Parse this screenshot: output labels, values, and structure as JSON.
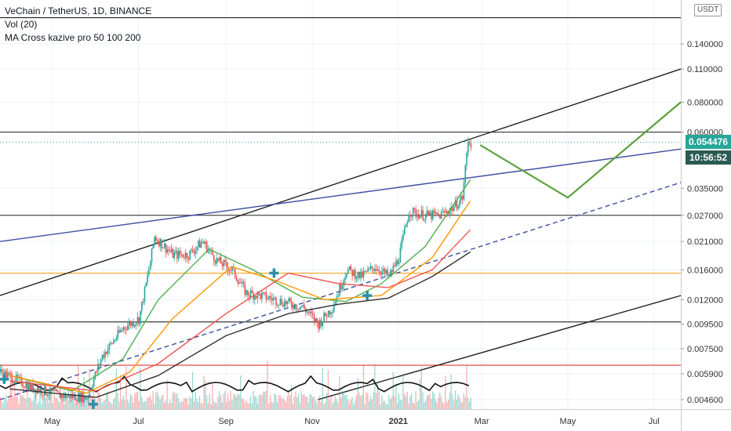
{
  "legend": {
    "title": "VeChain / TetherUS, 1D, BINANCE",
    "vol": "Vol (20)",
    "ma": "MA Cross kazive pro 50 100 200"
  },
  "axis": {
    "currency": "USDT"
  },
  "price_label": "0.054476",
  "countdown_label": "10:56:52",
  "colors": {
    "up": "#26a69a",
    "down": "#ef5350",
    "ma_fast": "#4caf50",
    "ma_mid": "#ff9800",
    "ma_slow": "#ef5350",
    "ma_200": "#333333",
    "trend_blue": "#3f4fa0",
    "projection": "#5ba03d",
    "support_orange": "#f5a623",
    "support_red": "#e53935"
  },
  "chart_data": {
    "type": "candlestick",
    "symbol": "VeChain / TetherUS",
    "interval": "1D",
    "exchange": "BINANCE",
    "price_scale": "log",
    "y_ticks": [
      0.0046,
      0.0059,
      0.0075,
      0.0095,
      0.012,
      0.016,
      0.021,
      0.027,
      0.035,
      0.06,
      0.08,
      0.11,
      0.14
    ],
    "x_ticks": [
      "May",
      "Jul",
      "Sep",
      "Nov",
      "2021",
      "Mar",
      "May",
      "Jul"
    ],
    "horizontal_levels": [
      {
        "price": 0.18,
        "color": "#222222"
      },
      {
        "price": 0.06,
        "color": "#222222"
      },
      {
        "price": 0.027,
        "color": "#222222"
      },
      {
        "price": 0.0155,
        "color": "#f5a623"
      },
      {
        "price": 0.0097,
        "color": "#222222"
      },
      {
        "price": 0.0064,
        "color": "#e53935"
      }
    ],
    "last_price": 0.054476,
    "countdown": "10:56:52",
    "price_path": [
      [
        "2020-03-25",
        0.006
      ],
      [
        "2020-04-15",
        0.0052
      ],
      [
        "2020-05-05",
        0.0048
      ],
      [
        "2020-05-25",
        0.0047
      ],
      [
        "2020-06-05",
        0.007
      ],
      [
        "2020-06-20",
        0.0092
      ],
      [
        "2020-07-01",
        0.01
      ],
      [
        "2020-07-08",
        0.016
      ],
      [
        "2020-07-12",
        0.022
      ],
      [
        "2020-07-25",
        0.0185
      ],
      [
        "2020-08-05",
        0.0185
      ],
      [
        "2020-08-15",
        0.021
      ],
      [
        "2020-08-25",
        0.0175
      ],
      [
        "2020-09-05",
        0.016
      ],
      [
        "2020-09-15",
        0.0128
      ],
      [
        "2020-09-25",
        0.0125
      ],
      [
        "2020-10-10",
        0.0118
      ],
      [
        "2020-10-25",
        0.0112
      ],
      [
        "2020-11-05",
        0.0095
      ],
      [
        "2020-11-15",
        0.0112
      ],
      [
        "2020-11-25",
        0.016
      ],
      [
        "2020-12-05",
        0.015
      ],
      [
        "2020-12-15",
        0.0165
      ],
      [
        "2020-12-25",
        0.015
      ],
      [
        "2021-01-01",
        0.018
      ],
      [
        "2021-01-08",
        0.028
      ],
      [
        "2021-01-20",
        0.027
      ],
      [
        "2021-01-30",
        0.027
      ],
      [
        "2021-02-08",
        0.029
      ],
      [
        "2021-02-15",
        0.032
      ],
      [
        "2021-02-19",
        0.056
      ],
      [
        "2021-02-21",
        0.054
      ]
    ],
    "moving_averages": [
      {
        "name": "MA 50",
        "color": "#4caf50",
        "points": [
          [
            "2020-04-01",
            0.0058
          ],
          [
            "2020-05-15",
            0.005
          ],
          [
            "2020-06-20",
            0.0068
          ],
          [
            "2020-07-15",
            0.012
          ],
          [
            "2020-08-20",
            0.0195
          ],
          [
            "2020-09-20",
            0.016
          ],
          [
            "2020-10-25",
            0.0123
          ],
          [
            "2020-11-25",
            0.0118
          ],
          [
            "2020-12-20",
            0.014
          ],
          [
            "2021-01-20",
            0.02
          ],
          [
            "2021-02-21",
            0.038
          ]
        ]
      },
      {
        "name": "MA 100",
        "color": "#ff9800",
        "points": [
          [
            "2020-04-01",
            0.0058
          ],
          [
            "2020-05-25",
            0.0049
          ],
          [
            "2020-06-25",
            0.006
          ],
          [
            "2020-07-25",
            0.01
          ],
          [
            "2020-09-05",
            0.0165
          ],
          [
            "2020-10-05",
            0.0145
          ],
          [
            "2020-11-10",
            0.012
          ],
          [
            "2020-12-20",
            0.0125
          ],
          [
            "2021-01-25",
            0.018
          ],
          [
            "2021-02-21",
            0.031
          ]
        ]
      },
      {
        "name": "MA 200 (red)",
        "color": "#ef5350",
        "points": [
          [
            "2020-04-01",
            0.0055
          ],
          [
            "2020-06-01",
            0.005
          ],
          [
            "2020-07-15",
            0.0065
          ],
          [
            "2020-09-01",
            0.0105
          ],
          [
            "2020-10-15",
            0.0155
          ],
          [
            "2020-11-20",
            0.014
          ],
          [
            "2020-12-25",
            0.0135
          ],
          [
            "2021-01-25",
            0.016
          ],
          [
            "2021-02-21",
            0.0235
          ]
        ]
      },
      {
        "name": "MA (dark)",
        "color": "#333333",
        "points": [
          [
            "2020-04-01",
            0.0051
          ],
          [
            "2020-06-01",
            0.0047
          ],
          [
            "2020-07-15",
            0.0058
          ],
          [
            "2020-09-01",
            0.0085
          ],
          [
            "2020-10-15",
            0.0105
          ],
          [
            "2020-11-20",
            0.0115
          ],
          [
            "2020-12-25",
            0.0122
          ],
          [
            "2021-01-25",
            0.015
          ],
          [
            "2021-02-21",
            0.019
          ]
        ]
      }
    ],
    "trendlines": [
      {
        "color": "#222222",
        "style": "solid",
        "from": [
          "2020-03-25",
          0.0125
        ],
        "to": [
          "2021-07-20",
          0.11
        ]
      },
      {
        "color": "#3f4fa0",
        "style": "solid",
        "from": [
          "2020-03-25",
          0.021
        ],
        "to": [
          "2021-07-20",
          0.051
        ]
      },
      {
        "color": "#3f4fa0",
        "style": "dashed",
        "from": [
          "2020-03-25",
          0.0046
        ],
        "to": [
          "2021-07-20",
          0.037
        ]
      },
      {
        "color": "#222222",
        "style": "solid",
        "from": [
          "2020-11-05",
          0.0046
        ],
        "to": [
          "2021-07-20",
          0.0125
        ]
      }
    ],
    "projection": [
      [
        "2021-02-28",
        0.053
      ],
      [
        "2021-05-01",
        0.032
      ],
      [
        "2021-07-20",
        0.08
      ]
    ],
    "markers": [
      {
        "date": "2020-03-28",
        "price": 0.0056
      },
      {
        "date": "2020-05-30",
        "price": 0.0044
      },
      {
        "date": "2020-10-05",
        "price": 0.0155
      },
      {
        "date": "2020-12-10",
        "price": 0.0125
      }
    ]
  }
}
